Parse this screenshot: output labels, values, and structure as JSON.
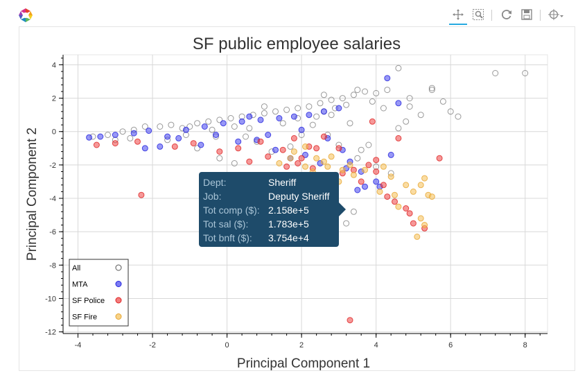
{
  "toolbar": {
    "tools": [
      {
        "name": "pan-tool",
        "icon": "pan-icon",
        "active": true
      },
      {
        "name": "box-zoom-tool",
        "icon": "box-zoom-icon",
        "active": false
      },
      {
        "name": "reset-tool",
        "icon": "reset-icon",
        "active": false
      },
      {
        "name": "save-tool",
        "icon": "save-icon",
        "active": false
      },
      {
        "name": "hover-tool",
        "icon": "crosshair-icon",
        "active": false
      }
    ]
  },
  "tooltip": {
    "rows": [
      {
        "key": "Dept:",
        "value": "Sheriff"
      },
      {
        "key": "Job:",
        "value": "Deputy Sheriff"
      },
      {
        "key": "Tot comp ($):",
        "value": "2.158e+5"
      },
      {
        "key": "Tot sal ($):",
        "value": "1.783e+5"
      },
      {
        "key": "Tot bnft ($):",
        "value": "3.754e+4"
      }
    ]
  },
  "chart_data": {
    "type": "scatter",
    "title": "SF public employee salaries",
    "xlabel": "Principal Component 1",
    "ylabel": "Principal Component 2",
    "xlim": [
      -4.4,
      8.6
    ],
    "ylim": [
      -12.1,
      4.6
    ],
    "x_ticks": [
      -4,
      -2,
      0,
      2,
      4,
      6,
      8
    ],
    "y_ticks": [
      4,
      2,
      0,
      -2,
      -4,
      -6,
      -8,
      -10,
      -12
    ],
    "grid": true,
    "legend_position": "bottom-left",
    "series": [
      {
        "name": "All",
        "color": "#555555",
        "fill": "none",
        "points": [
          [
            -3.6,
            -0.3
          ],
          [
            -3.2,
            -0.2
          ],
          [
            -2.8,
            0.0
          ],
          [
            -2.5,
            0.1
          ],
          [
            -2.2,
            0.3
          ],
          [
            -1.8,
            0.3
          ],
          [
            -1.5,
            0.4
          ],
          [
            -1.2,
            0.2
          ],
          [
            -1.0,
            0.3
          ],
          [
            -0.8,
            0.5
          ],
          [
            -0.5,
            0.6
          ],
          [
            -0.2,
            0.7
          ],
          [
            0.1,
            0.8
          ],
          [
            0.4,
            0.9
          ],
          [
            0.7,
            1.0
          ],
          [
            1.0,
            1.1
          ],
          [
            1.3,
            1.2
          ],
          [
            1.6,
            1.3
          ],
          [
            1.9,
            1.4
          ],
          [
            2.2,
            1.5
          ],
          [
            2.5,
            1.7
          ],
          [
            2.8,
            1.9
          ],
          [
            3.1,
            2.0
          ],
          [
            3.4,
            2.2
          ],
          [
            3.7,
            2.4
          ],
          [
            4.0,
            2.3
          ],
          [
            4.3,
            2.5
          ],
          [
            2.6,
            2.2
          ],
          [
            2.9,
            1.4
          ],
          [
            3.2,
            1.6
          ],
          [
            4.6,
            0.2
          ],
          [
            4.9,
            1.5
          ],
          [
            5.2,
            1.0
          ],
          [
            5.5,
            2.5
          ],
          [
            5.8,
            1.8
          ],
          [
            6.0,
            1.2
          ],
          [
            6.2,
            0.9
          ],
          [
            7.2,
            3.5
          ],
          [
            8.0,
            3.5
          ],
          [
            4.6,
            3.8
          ],
          [
            5.5,
            2.6
          ],
          [
            4.9,
            2.0
          ],
          [
            2.6,
            1.2
          ],
          [
            3.3,
            0.5
          ],
          [
            3.8,
            -0.8
          ],
          [
            3.5,
            -1.6
          ],
          [
            3.0,
            -0.8
          ],
          [
            3.6,
            -1.1
          ],
          [
            3.2,
            -5.5
          ],
          [
            3.4,
            -4.8
          ],
          [
            4.0,
            -2.1
          ],
          [
            4.4,
            -2.5
          ],
          [
            2.8,
            1.0
          ],
          [
            3.5,
            2.5
          ],
          [
            4.8,
            0.6
          ],
          [
            1.5,
            0.5
          ],
          [
            0.2,
            0.3
          ],
          [
            -0.3,
            -0.3
          ],
          [
            -1.6,
            -0.5
          ],
          [
            -2.6,
            -0.4
          ],
          [
            0.8,
            -0.6
          ],
          [
            1.2,
            -1.2
          ],
          [
            -0.8,
            -1.0
          ],
          [
            -0.2,
            -1.6
          ],
          [
            -3.0,
            -0.5
          ],
          [
            0.2,
            -1.9
          ],
          [
            0.5,
            -0.3
          ],
          [
            1.9,
            0.8
          ],
          [
            2.3,
            0.4
          ],
          [
            1.0,
            1.5
          ],
          [
            -0.4,
            0.1
          ],
          [
            2.0,
            -0.2
          ],
          [
            2.4,
            0.9
          ],
          [
            1.7,
            -0.9
          ],
          [
            0.6,
            0.2
          ],
          [
            -1.1,
            -0.2
          ],
          [
            4.2,
            1.4
          ],
          [
            2.7,
            -0.2
          ],
          [
            3.9,
            1.8
          ]
        ]
      },
      {
        "name": "MTA",
        "color": "#2222dd",
        "fill": "#4444ee",
        "points": [
          [
            -3.7,
            -0.35
          ],
          [
            -3.4,
            -0.3
          ],
          [
            -3.0,
            -0.2
          ],
          [
            -2.5,
            -0.1
          ],
          [
            -2.1,
            0.05
          ],
          [
            -1.6,
            -0.3
          ],
          [
            -1.1,
            0.1
          ],
          [
            -0.6,
            0.3
          ],
          [
            -0.1,
            0.5
          ],
          [
            0.4,
            0.6
          ],
          [
            0.9,
            0.7
          ],
          [
            1.4,
            0.8
          ],
          [
            1.8,
            0.9
          ],
          [
            2.2,
            1.0
          ],
          [
            2.6,
            1.2
          ],
          [
            3.0,
            1.4
          ],
          [
            -1.8,
            -0.9
          ],
          [
            -2.2,
            -1.0
          ],
          [
            -0.7,
            -0.8
          ],
          [
            -0.3,
            -0.2
          ],
          [
            0.3,
            -0.6
          ],
          [
            0.8,
            -0.5
          ],
          [
            1.3,
            -1.1
          ],
          [
            1.7,
            -1.6
          ],
          [
            2.1,
            -1.4
          ],
          [
            2.5,
            -1.9
          ],
          [
            3.2,
            -2.2
          ],
          [
            3.5,
            -3.5
          ],
          [
            3.7,
            -3.3
          ],
          [
            4.0,
            -3.0
          ],
          [
            4.1,
            -3.3
          ],
          [
            3.6,
            -2.4
          ],
          [
            4.4,
            -1.4
          ],
          [
            3.1,
            -1.1
          ],
          [
            2.7,
            -0.4
          ],
          [
            1.1,
            -0.2
          ],
          [
            -1.3,
            -0.4
          ],
          [
            0.6,
            0.9
          ],
          [
            4.3,
            3.2
          ],
          [
            4.6,
            1.7
          ],
          [
            3.3,
            -1.8
          ],
          [
            2.0,
            0.1
          ]
        ]
      },
      {
        "name": "SF Police",
        "color": "#dd2222",
        "fill": "#ee4444",
        "points": [
          [
            -3.5,
            -0.8
          ],
          [
            -3.0,
            -0.7
          ],
          [
            -2.4,
            -0.6
          ],
          [
            -1.4,
            -0.9
          ],
          [
            -0.9,
            -0.7
          ],
          [
            -0.2,
            -1.2
          ],
          [
            0.3,
            -1.0
          ],
          [
            0.6,
            -1.8
          ],
          [
            1.1,
            -1.5
          ],
          [
            1.5,
            -1.1
          ],
          [
            1.9,
            -1.9
          ],
          [
            2.3,
            -2.2
          ],
          [
            2.7,
            -2.8
          ],
          [
            3.1,
            -2.5
          ],
          [
            3.4,
            -2.3
          ],
          [
            3.6,
            -3.0
          ],
          [
            3.8,
            -2.0
          ],
          [
            4.0,
            -2.4
          ],
          [
            4.2,
            -3.2
          ],
          [
            4.3,
            -3.9
          ],
          [
            4.5,
            -4.2
          ],
          [
            4.8,
            -4.6
          ],
          [
            4.9,
            -4.9
          ],
          [
            5.0,
            -5.5
          ],
          [
            5.3,
            -5.8
          ],
          [
            -2.3,
            -3.8
          ],
          [
            3.3,
            -11.3
          ],
          [
            0.9,
            -0.6
          ],
          [
            1.8,
            -0.4
          ],
          [
            2.2,
            -0.9
          ],
          [
            2.6,
            -0.3
          ],
          [
            3.0,
            -1.0
          ],
          [
            4.6,
            -0.4
          ],
          [
            5.7,
            -1.6
          ],
          [
            4.0,
            -1.7
          ],
          [
            2.0,
            -1.6
          ],
          [
            2.4,
            -1.0
          ],
          [
            3.9,
            0.6
          ],
          [
            1.6,
            -2.1
          ]
        ]
      },
      {
        "name": "SF Fire",
        "color": "#e6a530",
        "fill": "#f5bf55",
        "points": [
          [
            1.4,
            -1.9
          ],
          [
            1.8,
            -1.2
          ],
          [
            2.1,
            -2.1
          ],
          [
            2.3,
            -2.4
          ],
          [
            2.6,
            -1.8
          ],
          [
            2.7,
            -2.1
          ],
          [
            2.9,
            -2.6
          ],
          [
            3.1,
            -2.3
          ],
          [
            3.4,
            -2.6
          ],
          [
            3.7,
            -2.3
          ],
          [
            4.2,
            -2.1
          ],
          [
            4.5,
            -3.8
          ],
          [
            4.8,
            -3.2
          ],
          [
            5.0,
            -3.6
          ],
          [
            5.2,
            -3.2
          ],
          [
            5.4,
            -3.8
          ],
          [
            5.5,
            -3.9
          ],
          [
            5.3,
            -2.8
          ],
          [
            5.2,
            -5.2
          ],
          [
            5.3,
            -5.6
          ],
          [
            5.1,
            -6.3
          ],
          [
            4.6,
            -4.5
          ],
          [
            4.1,
            -3.6
          ],
          [
            3.0,
            -3.0
          ],
          [
            2.4,
            -1.6
          ],
          [
            2.1,
            -0.9
          ],
          [
            1.7,
            -1.6
          ],
          [
            2.8,
            -1.5
          ],
          [
            3.3,
            -2.0
          ],
          [
            4.4,
            -2.7
          ]
        ]
      }
    ],
    "legend": [
      "All",
      "MTA",
      "SF Police",
      "SF Fire"
    ]
  }
}
